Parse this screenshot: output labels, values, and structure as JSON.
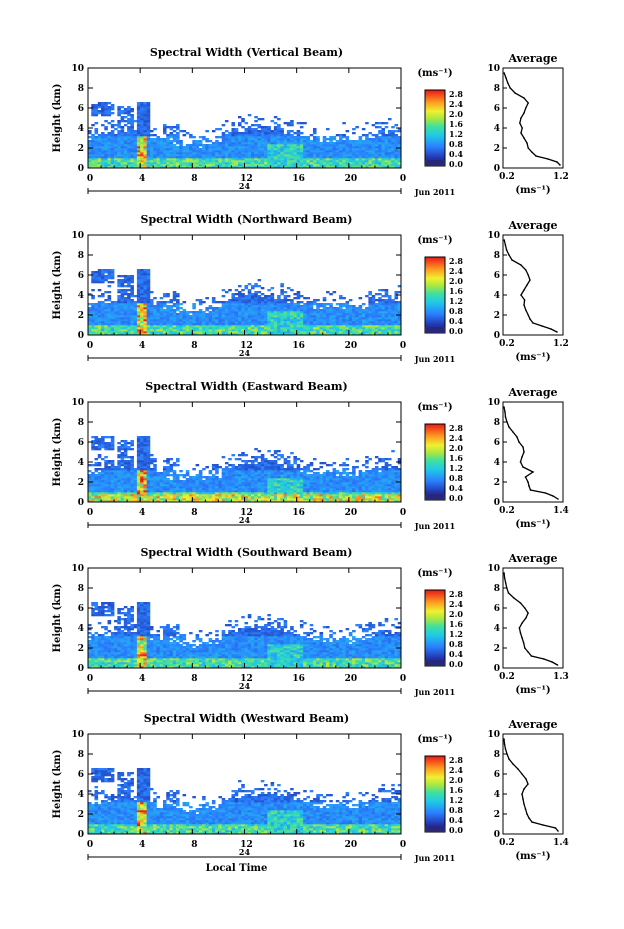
{
  "common": {
    "ylabel": "Height (km)",
    "unit_label": "(ms⁻¹)",
    "avg_title": "Average",
    "avg_unit": "(ms⁻¹)",
    "date_label": "Jun 2011",
    "day_label": "24",
    "xlabel": "Local Time",
    "x_ticks": [
      "0",
      "4",
      "8",
      "12",
      "16",
      "20",
      "0"
    ],
    "y_ticks": [
      "0",
      "2",
      "4",
      "6",
      "8",
      "10"
    ],
    "colorbar_ticks": [
      "2.8",
      "2.4",
      "2.0",
      "1.6",
      "1.2",
      "0.8",
      "0.4",
      "0.0"
    ],
    "colorbar_ticks_alt": [
      "2.8",
      "2.4",
      "2.0",
      "1.6",
      "1.2",
      "0.8",
      "0.4",
      "0.0"
    ]
  },
  "chart_data": [
    {
      "type": "heatmap",
      "title": "Spectral Width (Vertical Beam)",
      "xlabel": "",
      "ylabel": "Height (km)",
      "xlim": [
        0,
        24
      ],
      "ylim": [
        0,
        10
      ],
      "clim": [
        0,
        2.8
      ],
      "average": {
        "type": "line",
        "title": "Average",
        "xticks": [
          "0.2",
          "1.2"
        ],
        "xlim": [
          0.2,
          1.2
        ],
        "ylim": [
          0,
          10
        ],
        "height": [
          0.3,
          0.6,
          0.9,
          1.2,
          1.6,
          2.0,
          2.5,
          3.0,
          3.5,
          4.0,
          4.5,
          5.0,
          5.5,
          6.0,
          6.5,
          7.0,
          7.5,
          8.0,
          8.5,
          9.0,
          9.5
        ],
        "value": [
          1.15,
          1.1,
          0.95,
          0.75,
          0.68,
          0.62,
          0.6,
          0.55,
          0.5,
          0.52,
          0.48,
          0.5,
          0.55,
          0.58,
          0.62,
          0.55,
          0.4,
          0.32,
          0.28,
          0.25,
          0.22
        ]
      }
    },
    {
      "type": "heatmap",
      "title": "Spectral Width (Northward Beam)",
      "xlabel": "",
      "ylabel": "Height (km)",
      "xlim": [
        0,
        24
      ],
      "ylim": [
        0,
        10
      ],
      "clim": [
        0,
        2.8
      ],
      "average": {
        "type": "line",
        "title": "Average",
        "xticks": [
          "0.2",
          "1.2"
        ],
        "xlim": [
          0.2,
          1.2
        ],
        "ylim": [
          0,
          10
        ],
        "height": [
          0.3,
          0.6,
          0.9,
          1.2,
          1.6,
          2.0,
          2.5,
          3.0,
          3.5,
          4.0,
          4.5,
          5.0,
          5.5,
          6.0,
          6.5,
          7.0,
          7.5,
          8.0,
          8.5,
          9.0,
          9.5
        ],
        "value": [
          1.1,
          1.0,
          0.85,
          0.7,
          0.65,
          0.62,
          0.58,
          0.55,
          0.56,
          0.5,
          0.55,
          0.6,
          0.65,
          0.62,
          0.58,
          0.5,
          0.35,
          0.3,
          0.26,
          0.24,
          0.22
        ]
      }
    },
    {
      "type": "heatmap",
      "title": "Spectral Width (Eastward Beam)",
      "xlabel": "",
      "ylabel": "Height (km)",
      "xlim": [
        0,
        24
      ],
      "ylim": [
        0,
        10
      ],
      "clim": [
        0,
        2.8
      ],
      "average": {
        "type": "line",
        "title": "Average",
        "xticks": [
          "0.2",
          "1.4"
        ],
        "xlim": [
          0.2,
          1.4
        ],
        "ylim": [
          0,
          10
        ],
        "height": [
          0.3,
          0.6,
          0.9,
          1.2,
          1.6,
          2.0,
          2.5,
          3.0,
          3.5,
          4.0,
          4.5,
          5.0,
          5.5,
          6.0,
          6.5,
          7.0,
          7.5,
          8.0,
          8.5,
          9.0,
          9.5
        ],
        "value": [
          1.3,
          1.2,
          1.05,
          0.75,
          0.72,
          0.7,
          0.65,
          0.8,
          0.6,
          0.55,
          0.58,
          0.62,
          0.6,
          0.52,
          0.48,
          0.4,
          0.32,
          0.28,
          0.25,
          0.24,
          0.22
        ]
      }
    },
    {
      "type": "heatmap",
      "title": "Spectral Width (Southward Beam)",
      "xlabel": "",
      "ylabel": "Height (km)",
      "xlim": [
        0,
        24
      ],
      "ylim": [
        0,
        10
      ],
      "clim": [
        0,
        2.8
      ],
      "average": {
        "type": "line",
        "title": "Average",
        "xticks": [
          "0.2",
          "1.3"
        ],
        "xlim": [
          0.2,
          1.3
        ],
        "ylim": [
          0,
          10
        ],
        "height": [
          0.3,
          0.6,
          0.9,
          1.2,
          1.6,
          2.0,
          2.5,
          3.0,
          3.5,
          4.0,
          4.5,
          5.0,
          5.5,
          6.0,
          6.5,
          7.0,
          7.5,
          8.0,
          8.5,
          9.0,
          9.5
        ],
        "value": [
          1.2,
          1.1,
          0.95,
          0.72,
          0.66,
          0.6,
          0.58,
          0.55,
          0.52,
          0.5,
          0.55,
          0.62,
          0.66,
          0.6,
          0.52,
          0.4,
          0.3,
          0.27,
          0.25,
          0.23,
          0.22
        ]
      }
    },
    {
      "type": "heatmap",
      "title": "Spectral Width (Westward Beam)",
      "xlabel": "Local Time",
      "ylabel": "Height (km)",
      "xlim": [
        0,
        24
      ],
      "ylim": [
        0,
        10
      ],
      "clim": [
        0,
        2.8
      ],
      "average": {
        "type": "line",
        "title": "Average",
        "xticks": [
          "0.2",
          "1.4"
        ],
        "xlim": [
          0.2,
          1.4
        ],
        "ylim": [
          0,
          10
        ],
        "height": [
          0.3,
          0.6,
          0.9,
          1.2,
          1.6,
          2.0,
          2.5,
          3.0,
          3.5,
          4.0,
          4.5,
          5.0,
          5.5,
          6.0,
          6.5,
          7.0,
          7.5,
          8.0,
          8.5,
          9.0,
          9.5
        ],
        "value": [
          1.3,
          1.25,
          1.0,
          0.78,
          0.72,
          0.68,
          0.65,
          0.62,
          0.6,
          0.58,
          0.62,
          0.7,
          0.66,
          0.58,
          0.5,
          0.4,
          0.32,
          0.28,
          0.25,
          0.23,
          0.22
        ]
      }
    }
  ]
}
